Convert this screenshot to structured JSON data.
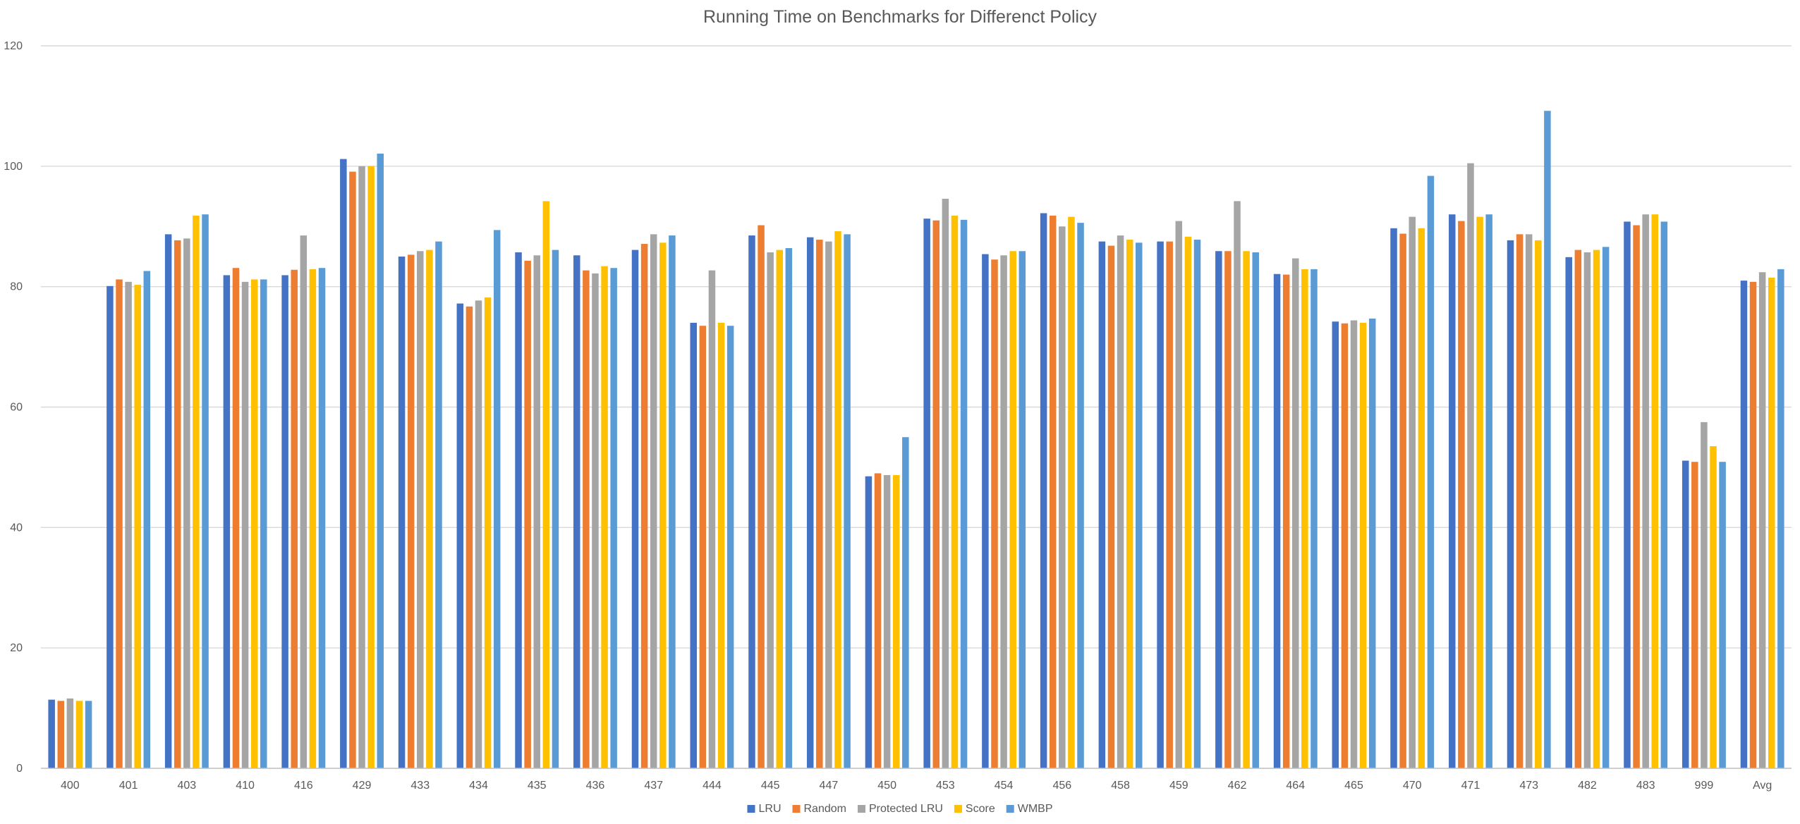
{
  "chart_data": {
    "type": "bar",
    "title": "Running Time on Benchmarks for Differenct Policy",
    "xlabel": "",
    "ylabel": "",
    "ylim": [
      0,
      120
    ],
    "yticks": [
      0,
      20,
      40,
      60,
      80,
      100,
      120
    ],
    "grid": true,
    "legend_position": "bottom",
    "categories": [
      "400",
      "401",
      "403",
      "410",
      "416",
      "429",
      "433",
      "434",
      "435",
      "436",
      "437",
      "444",
      "445",
      "447",
      "450",
      "453",
      "454",
      "456",
      "458",
      "459",
      "462",
      "464",
      "465",
      "470",
      "471",
      "473",
      "482",
      "483",
      "999",
      "Avg"
    ],
    "series": [
      {
        "name": "LRU",
        "color": "#4472C4",
        "values": [
          11.4,
          80.1,
          88.7,
          81.9,
          81.9,
          101.2,
          85.0,
          77.2,
          85.7,
          85.2,
          86.1,
          74.0,
          88.5,
          88.2,
          48.5,
          91.3,
          85.4,
          92.2,
          87.5,
          87.5,
          85.9,
          82.1,
          74.2,
          89.7,
          92.0,
          87.7,
          84.9,
          90.8,
          51.1,
          81.0
        ]
      },
      {
        "name": "Random",
        "color": "#ED7D31",
        "values": [
          11.2,
          81.2,
          87.7,
          83.1,
          82.8,
          99.1,
          85.3,
          76.7,
          84.3,
          82.7,
          87.1,
          73.5,
          90.2,
          87.8,
          49.0,
          91.0,
          84.5,
          91.8,
          86.8,
          87.5,
          85.9,
          82.0,
          73.9,
          88.8,
          90.9,
          88.7,
          86.1,
          90.2,
          50.9,
          80.8
        ]
      },
      {
        "name": "Protected LRU",
        "color": "#A5A5A5",
        "values": [
          11.6,
          80.8,
          88.0,
          80.8,
          88.5,
          100.0,
          85.9,
          77.7,
          85.2,
          82.2,
          88.7,
          82.7,
          85.7,
          87.5,
          48.7,
          94.6,
          85.2,
          90.0,
          88.5,
          90.9,
          94.2,
          84.7,
          74.4,
          91.6,
          100.5,
          88.7,
          85.7,
          92.0,
          57.5,
          82.4
        ]
      },
      {
        "name": "Score",
        "color": "#FFC000",
        "values": [
          11.2,
          80.3,
          91.8,
          81.2,
          82.9,
          100.0,
          86.1,
          78.2,
          94.2,
          83.4,
          87.3,
          74.0,
          86.1,
          89.2,
          48.7,
          91.8,
          85.9,
          91.6,
          87.8,
          88.3,
          85.9,
          82.9,
          74.0,
          89.7,
          91.6,
          87.7,
          86.1,
          92.0,
          53.5,
          81.5
        ]
      },
      {
        "name": "WMBP",
        "color": "#5B9BD5",
        "values": [
          11.2,
          82.6,
          92.0,
          81.2,
          83.1,
          102.1,
          87.5,
          89.4,
          86.1,
          83.1,
          88.5,
          73.5,
          86.4,
          88.7,
          55.0,
          91.1,
          85.9,
          90.6,
          87.3,
          87.8,
          85.7,
          82.9,
          74.7,
          98.4,
          92.0,
          109.2,
          86.6,
          90.8,
          50.9,
          82.9
        ]
      }
    ]
  }
}
